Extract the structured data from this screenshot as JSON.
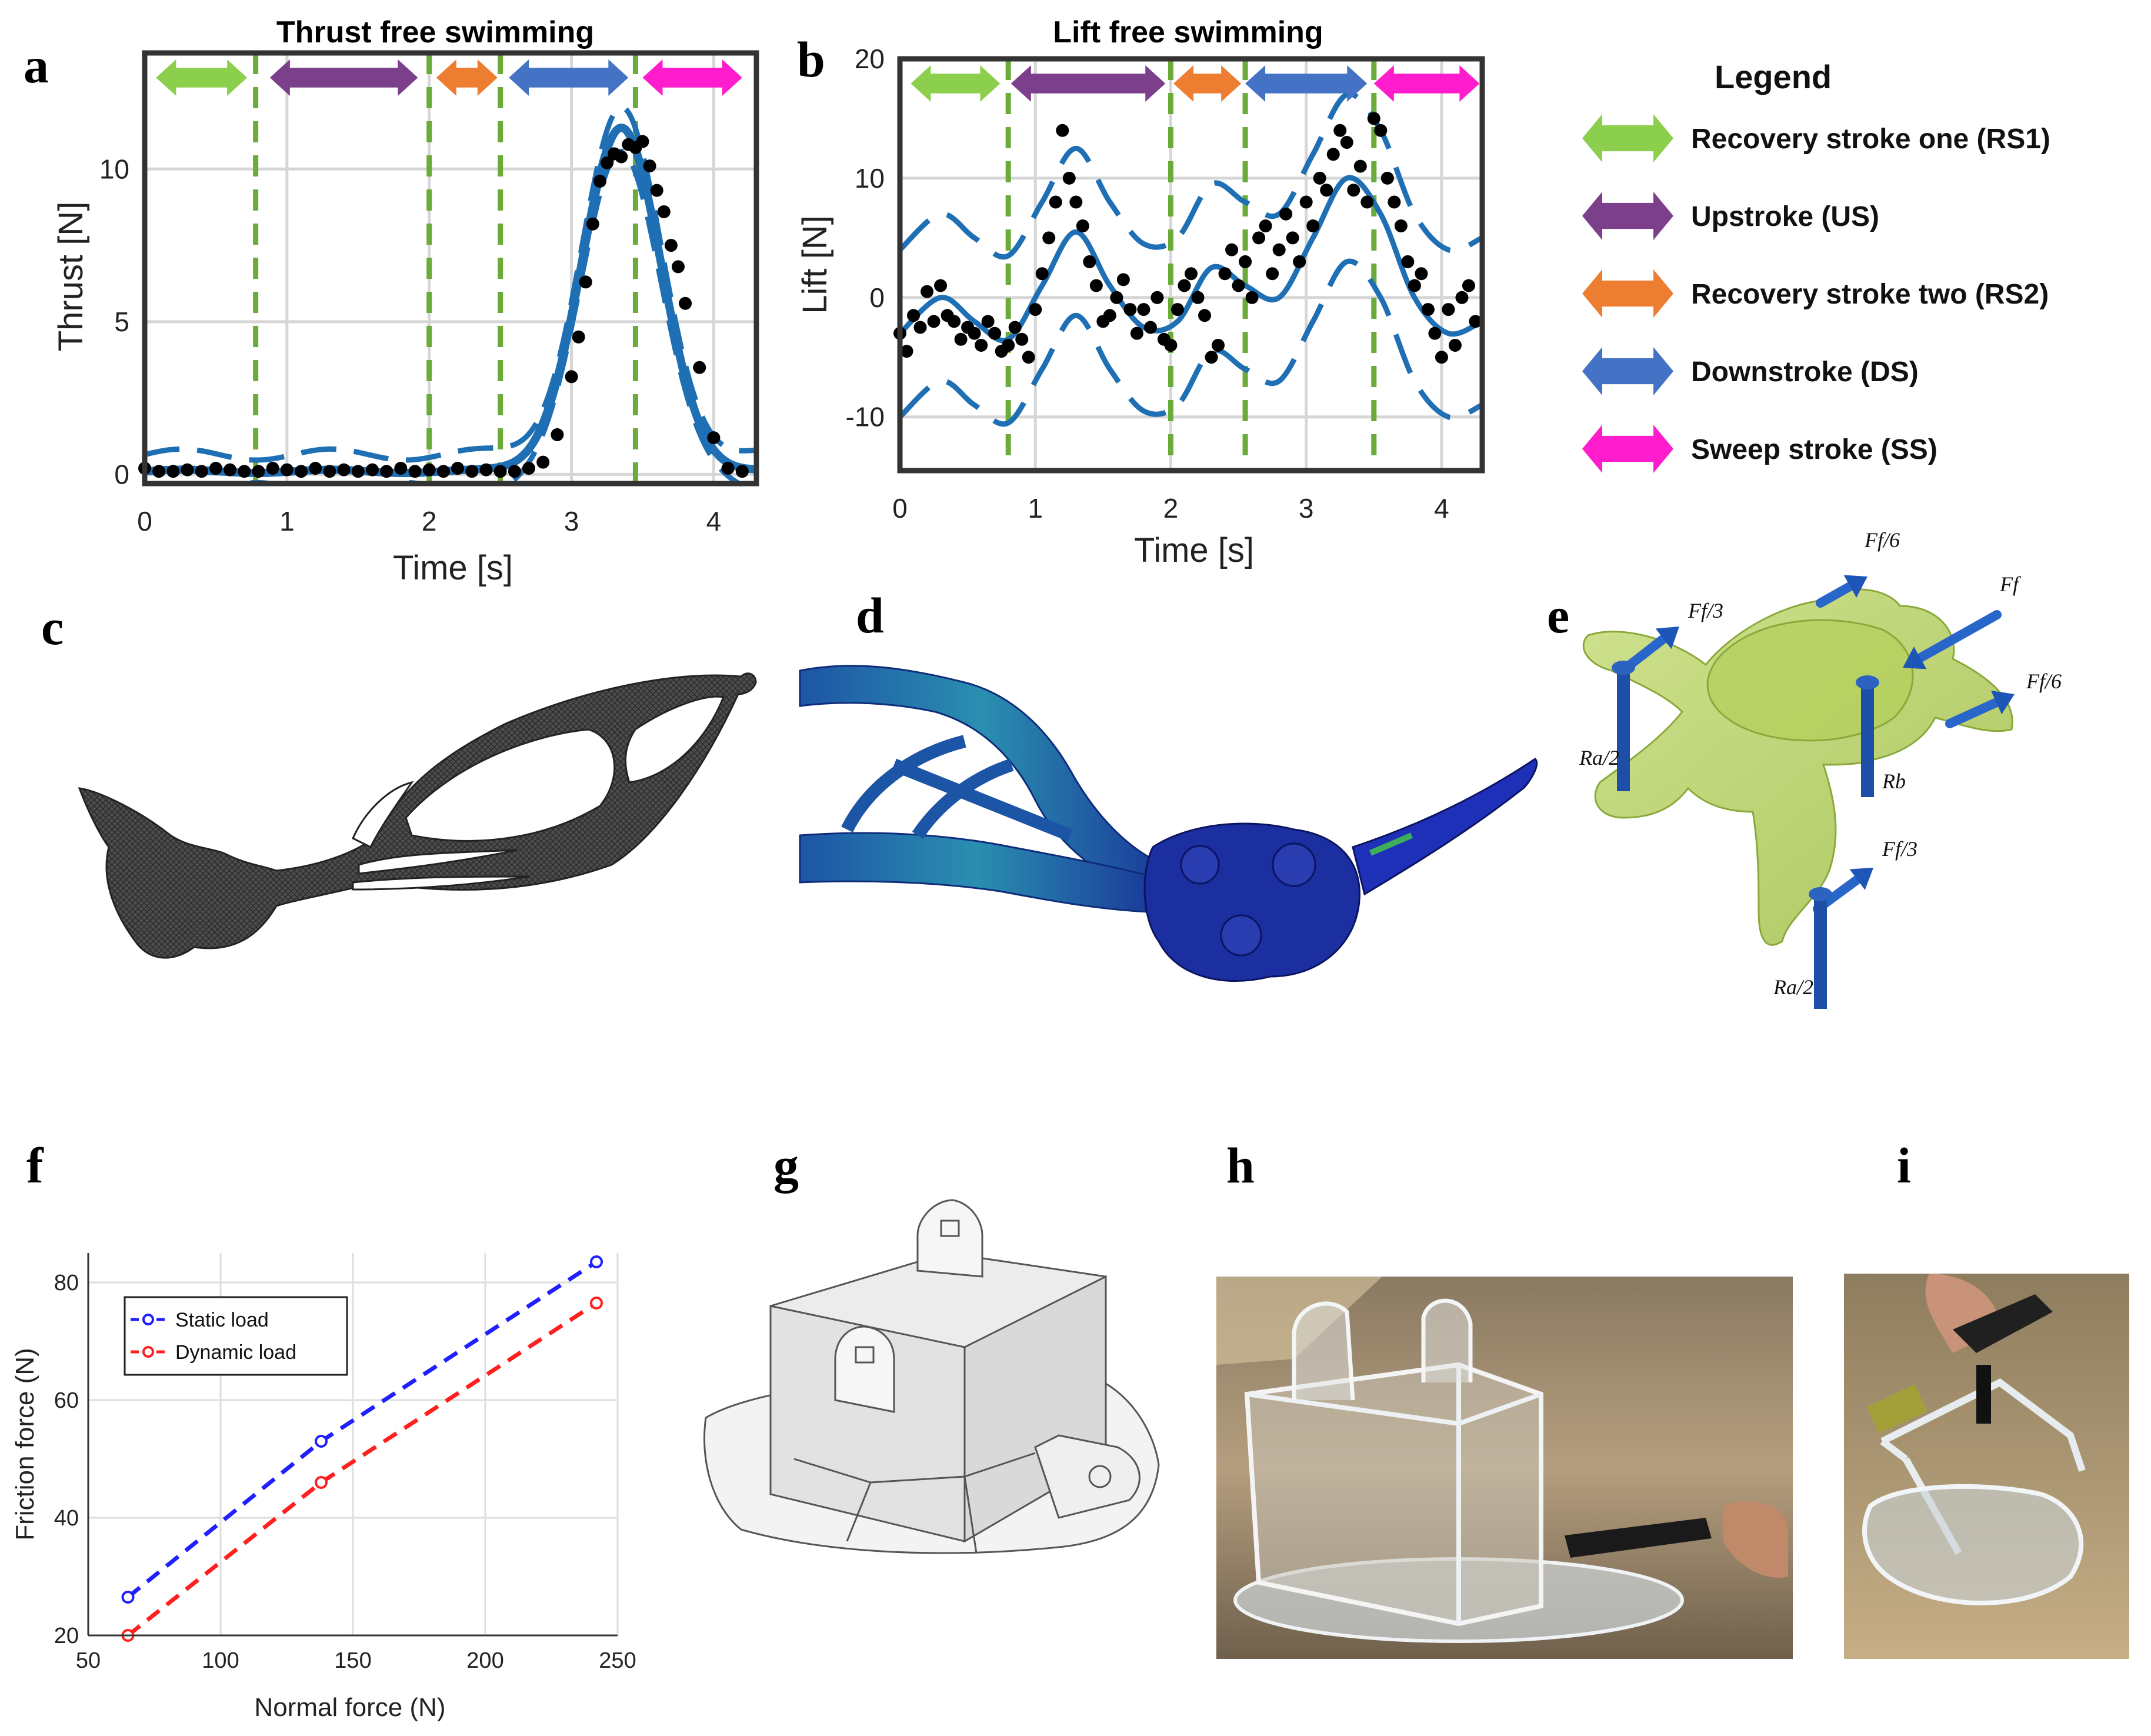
{
  "panels": {
    "a": "a",
    "b": "b",
    "c": "c",
    "d": "d",
    "e": "e",
    "f": "f",
    "g": "g",
    "h": "h",
    "i": "i"
  },
  "legend": {
    "title": "Legend",
    "items": [
      {
        "label": "Recovery stroke one (RS1)",
        "color": "#8ccf4d"
      },
      {
        "label": "Upstroke (US)",
        "color": "#7b3f8c"
      },
      {
        "label": "Recovery stroke two (RS2)",
        "color": "#ed7d31"
      },
      {
        "label": "Downstroke (DS)",
        "color": "#4472c4"
      },
      {
        "label": "Sweep stroke (SS)",
        "color": "#ff1ccc"
      }
    ]
  },
  "diagram_e": {
    "labels": [
      "Ff/3",
      "Ff/6",
      "Ff",
      "Ff/6",
      "Ff/3",
      "Ra/2",
      "Rb",
      "Ra/2"
    ]
  },
  "chart_data": [
    {
      "id": "a",
      "type": "line",
      "title": "Thrust free swimming",
      "xlabel": "Time  [s]",
      "ylabel": "Thrust  [N]",
      "xlim": [
        0,
        4.3
      ],
      "ylim": [
        -0.3,
        13.8
      ],
      "xticks": [
        0,
        1,
        2,
        3,
        4
      ],
      "yticks": [
        0,
        5,
        10
      ],
      "phase_boundaries": [
        0.78,
        2.0,
        2.5,
        3.45
      ],
      "phases": [
        {
          "label": "RS1",
          "from": 0.08,
          "to": 0.72,
          "color": "#8ccf4d"
        },
        {
          "label": "US",
          "from": 0.88,
          "to": 1.92,
          "color": "#7b3f8c"
        },
        {
          "label": "RS2",
          "from": 2.05,
          "to": 2.48,
          "color": "#ed7d31"
        },
        {
          "label": "DS",
          "from": 2.56,
          "to": 3.4,
          "color": "#4472c4"
        },
        {
          "label": "SS",
          "from": 3.5,
          "to": 4.2,
          "color": "#ff1ccc"
        }
      ],
      "scatter": {
        "x": [
          0,
          0.1,
          0.2,
          0.3,
          0.4,
          0.5,
          0.6,
          0.7,
          0.8,
          0.9,
          1.0,
          1.1,
          1.2,
          1.3,
          1.4,
          1.5,
          1.6,
          1.7,
          1.8,
          1.9,
          2.0,
          2.1,
          2.2,
          2.3,
          2.4,
          2.5,
          2.6,
          2.7,
          2.8,
          2.9,
          3.0,
          3.05,
          3.1,
          3.15,
          3.2,
          3.25,
          3.3,
          3.35,
          3.4,
          3.45,
          3.5,
          3.55,
          3.6,
          3.65,
          3.7,
          3.75,
          3.8,
          3.9,
          4.0,
          4.1,
          4.2
        ],
        "y": [
          0.2,
          0.1,
          0.1,
          0.15,
          0.1,
          0.2,
          0.15,
          0.1,
          0.1,
          0.2,
          0.15,
          0.1,
          0.2,
          0.1,
          0.15,
          0.1,
          0.15,
          0.1,
          0.2,
          0.1,
          0.15,
          0.1,
          0.2,
          0.1,
          0.15,
          0.1,
          0.1,
          0.2,
          0.4,
          1.3,
          3.2,
          4.5,
          6.3,
          8.2,
          9.6,
          10.2,
          10.5,
          10.4,
          10.8,
          10.7,
          10.9,
          10.1,
          9.3,
          8.6,
          7.5,
          6.8,
          5.6,
          3.5,
          1.2,
          0.2,
          0.1
        ]
      },
      "fit": {
        "baseline": 0.1,
        "peak": 11.2,
        "peak_x": 3.35,
        "sigma": 0.28,
        "band_half_width": 0.55
      }
    },
    {
      "id": "b",
      "type": "line",
      "title": "Lift free swimming",
      "xlabel": "Time  [s]",
      "ylabel": "Lift  [N]",
      "xlim": [
        0,
        4.3
      ],
      "ylim": [
        -14.5,
        20
      ],
      "xticks": [
        0,
        1,
        2,
        3,
        4
      ],
      "yticks": [
        -10,
        0,
        10,
        20
      ],
      "phase_boundaries": [
        0.8,
        2.0,
        2.55,
        3.5
      ],
      "phases": [
        {
          "label": "RS1",
          "from": 0.08,
          "to": 0.74,
          "color": "#8ccf4d"
        },
        {
          "label": "US",
          "from": 0.82,
          "to": 1.96,
          "color": "#7b3f8c"
        },
        {
          "label": "RS2",
          "from": 2.02,
          "to": 2.52,
          "color": "#ed7d31"
        },
        {
          "label": "DS",
          "from": 2.55,
          "to": 3.45,
          "color": "#4472c4"
        },
        {
          "label": "SS",
          "from": 3.5,
          "to": 4.28,
          "color": "#ff1ccc"
        }
      ],
      "scatter": {
        "x": [
          0,
          0.05,
          0.1,
          0.15,
          0.2,
          0.25,
          0.3,
          0.35,
          0.4,
          0.45,
          0.5,
          0.55,
          0.6,
          0.65,
          0.7,
          0.75,
          0.8,
          0.85,
          0.9,
          0.95,
          1.0,
          1.05,
          1.1,
          1.15,
          1.2,
          1.25,
          1.3,
          1.35,
          1.4,
          1.45,
          1.5,
          1.55,
          1.6,
          1.65,
          1.7,
          1.75,
          1.8,
          1.85,
          1.9,
          1.95,
          2.0,
          2.05,
          2.1,
          2.15,
          2.2,
          2.25,
          2.3,
          2.35,
          2.4,
          2.45,
          2.5,
          2.55,
          2.6,
          2.65,
          2.7,
          2.75,
          2.8,
          2.85,
          2.9,
          2.95,
          3.0,
          3.05,
          3.1,
          3.15,
          3.2,
          3.25,
          3.3,
          3.35,
          3.4,
          3.45,
          3.5,
          3.55,
          3.6,
          3.65,
          3.7,
          3.75,
          3.8,
          3.85,
          3.9,
          3.95,
          4.0,
          4.05,
          4.1,
          4.15,
          4.2,
          4.25
        ],
        "y": [
          -3,
          -4.5,
          -1.5,
          -2.5,
          0.5,
          -2,
          1,
          -1.5,
          -2,
          -3.5,
          -2.5,
          -3,
          -4,
          -2,
          -3,
          -4.5,
          -4,
          -2.5,
          -3.5,
          -5,
          -1,
          2,
          5,
          8,
          14,
          10,
          8,
          6,
          3,
          1,
          -2,
          -1.5,
          0,
          1.5,
          -1,
          -3,
          -1,
          -2.5,
          0,
          -3.5,
          -4,
          -1,
          1,
          2,
          0,
          -1.5,
          -5,
          -4,
          2,
          4,
          1,
          3,
          0,
          5,
          6,
          2,
          4,
          7,
          5,
          3,
          8,
          6,
          10,
          9,
          12,
          14,
          13,
          9,
          11,
          8,
          15,
          14,
          10,
          8,
          6,
          3,
          1,
          2,
          -1,
          -3,
          -5,
          -1,
          -4,
          0,
          1,
          -2
        ]
      },
      "fit": {
        "mean_x": [
          0,
          0.3,
          0.55,
          0.8,
          1.05,
          1.3,
          1.55,
          1.8,
          2.05,
          2.3,
          2.55,
          2.8,
          3.05,
          3.3,
          3.55,
          3.8,
          4.05,
          4.3
        ],
        "mean_y": [
          -3,
          0,
          -2,
          -3.5,
          1,
          5.5,
          1,
          -2.5,
          -2,
          2.5,
          1,
          0,
          5,
          10,
          7,
          0,
          -3,
          -2
        ],
        "band_half_width": 7
      }
    },
    {
      "id": "f",
      "type": "line",
      "title": "",
      "xlabel": "Normal force (N)",
      "ylabel": "Friction force (N)",
      "xlim": [
        50,
        250
      ],
      "ylim": [
        20,
        85
      ],
      "xticks": [
        50,
        100,
        150,
        200,
        250
      ],
      "yticks": [
        20,
        40,
        60,
        80
      ],
      "grid": true,
      "legend": "top-left",
      "series": [
        {
          "name": "Static load",
          "color": "#1f1fff",
          "x": [
            65,
            138,
            242
          ],
          "y": [
            26.5,
            53,
            83.5
          ]
        },
        {
          "name": "Dynamic load",
          "color": "#ff1f1f",
          "x": [
            65,
            138,
            242
          ],
          "y": [
            20,
            46,
            76.5
          ]
        }
      ]
    }
  ]
}
